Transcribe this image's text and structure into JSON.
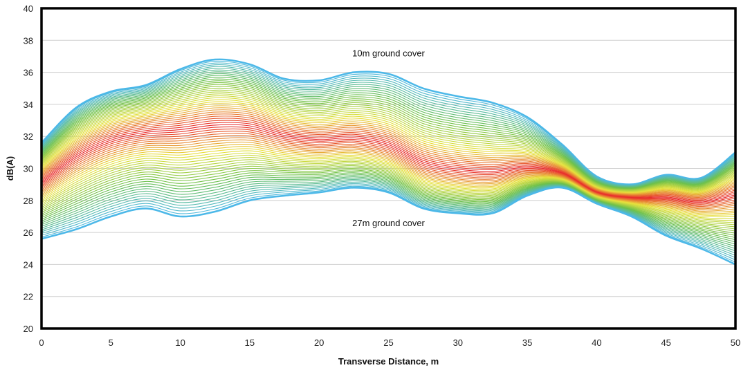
{
  "chart_data": {
    "type": "line",
    "title": "",
    "xlabel": "Transverse Distance, m",
    "ylabel": "dB(A)",
    "xlim": [
      0,
      50
    ],
    "ylim": [
      20,
      40
    ],
    "xticks": [
      0,
      5,
      10,
      15,
      20,
      25,
      30,
      35,
      40,
      45,
      50
    ],
    "yticks": [
      20,
      22,
      24,
      26,
      28,
      30,
      32,
      34,
      36,
      38,
      40
    ],
    "grid": "horizontal",
    "legend": "none",
    "annotations": [
      {
        "text": "10m ground cover",
        "x": 25,
        "y": 37.0
      },
      {
        "text": "27m ground cover",
        "x": 25,
        "y": 26.4
      }
    ],
    "series_count": 69,
    "series_label_range": [
      "10m ground cover",
      "27m ground cover"
    ],
    "x": [
      0,
      2.5,
      5,
      7.5,
      10,
      12.5,
      15,
      17.5,
      20,
      22.5,
      25,
      27.5,
      30,
      32.5,
      35,
      37.5,
      40,
      42.5,
      45,
      47.5,
      50
    ],
    "top_curve_10m": [
      31.6,
      33.8,
      34.8,
      35.2,
      36.2,
      36.8,
      36.5,
      35.6,
      35.5,
      36.0,
      35.9,
      35.0,
      34.5,
      34.1,
      33.2,
      31.5,
      29.5,
      29.0,
      29.6,
      29.4,
      31.0
    ],
    "bottom_curve_27m": [
      25.6,
      26.2,
      27.0,
      27.5,
      27.0,
      27.3,
      28.0,
      28.3,
      28.5,
      28.8,
      28.5,
      27.5,
      27.2,
      27.2,
      28.3,
      28.8,
      27.8,
      27.0,
      25.8,
      25.0,
      24.0
    ],
    "color_scale": [
      "#4cb8e8",
      "#6cc04a",
      "#e8e23c",
      "#e8292c"
    ]
  }
}
